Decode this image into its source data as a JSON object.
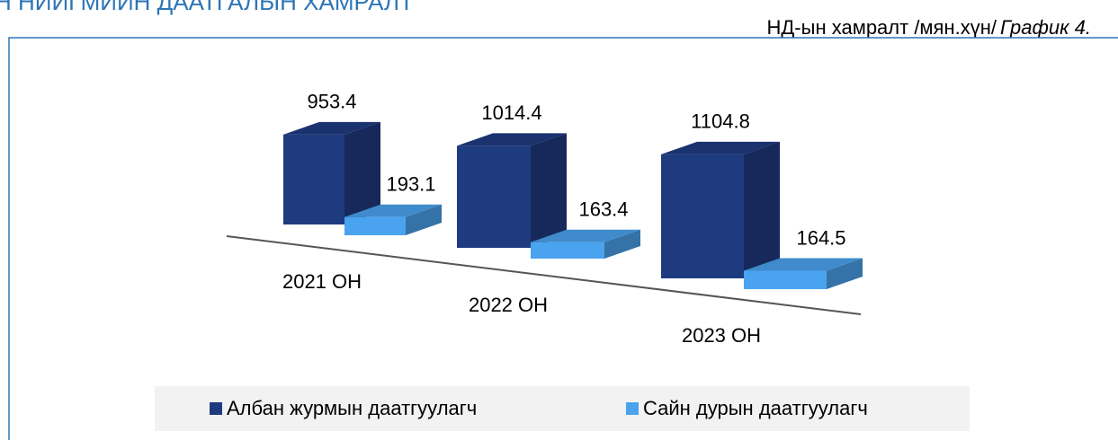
{
  "chart_data": {
    "type": "bar",
    "heading": "Н НИЙГМИЙН ДААТГАЛЫН ХАМРАЛТ",
    "subtitle": "НД-ын хамралт /мян.хүн/",
    "figure_label": "График 4.",
    "categories": [
      "2021 ОН",
      "2022 ОН",
      "2023 ОН"
    ],
    "series": [
      {
        "name": "Албан журмын даатгуулагч",
        "color": "#1f3b80",
        "values": [
          953.4,
          1014.4,
          1104.8
        ]
      },
      {
        "name": "Сайн дурын даатгуулагч",
        "color": "#4aa3ef",
        "values": [
          193.1,
          163.4,
          164.5
        ]
      }
    ],
    "legend": "bottom"
  }
}
